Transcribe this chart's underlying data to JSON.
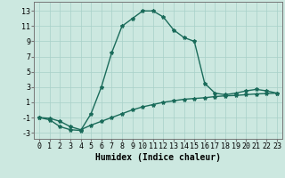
{
  "line1_x": [
    0,
    1,
    2,
    3,
    4,
    5,
    6,
    7,
    8,
    9,
    10,
    11,
    12,
    13,
    14,
    15,
    16,
    17,
    18,
    19,
    20,
    21,
    22,
    23
  ],
  "line1_y": [
    -1.0,
    -1.3,
    -2.2,
    -2.6,
    -2.7,
    -0.5,
    3.0,
    7.5,
    11.0,
    12.0,
    13.0,
    13.0,
    12.2,
    10.5,
    9.5,
    9.0,
    3.5,
    2.2,
    2.0,
    2.2,
    2.5,
    2.7,
    2.5,
    2.2
  ],
  "line2_x": [
    0,
    1,
    2,
    3,
    4,
    5,
    6,
    7,
    8,
    9,
    10,
    11,
    12,
    13,
    14,
    15,
    16,
    17,
    18,
    19,
    20,
    21,
    22,
    23
  ],
  "line2_y": [
    -1.0,
    -1.1,
    -1.5,
    -2.2,
    -2.6,
    -2.0,
    -1.5,
    -1.0,
    -0.5,
    0.0,
    0.4,
    0.7,
    1.0,
    1.2,
    1.4,
    1.5,
    1.6,
    1.75,
    1.85,
    1.9,
    2.0,
    2.1,
    2.15,
    2.2
  ],
  "line_color": "#1a6b5a",
  "bg_color": "#cce8e0",
  "grid_color": "#a8d0c8",
  "xlabel": "Humidex (Indice chaleur)",
  "xticks": [
    0,
    1,
    2,
    3,
    4,
    5,
    6,
    7,
    8,
    9,
    10,
    11,
    12,
    13,
    14,
    15,
    16,
    17,
    18,
    19,
    20,
    21,
    22,
    23
  ],
  "yticks": [
    -3,
    -1,
    1,
    3,
    5,
    7,
    9,
    11,
    13
  ],
  "xlim": [
    -0.5,
    23.5
  ],
  "ylim": [
    -3.8,
    14.2
  ],
  "marker": "*",
  "marker_size": 3,
  "linewidth": 1.0,
  "xlabel_fontsize": 7,
  "tick_fontsize": 6
}
